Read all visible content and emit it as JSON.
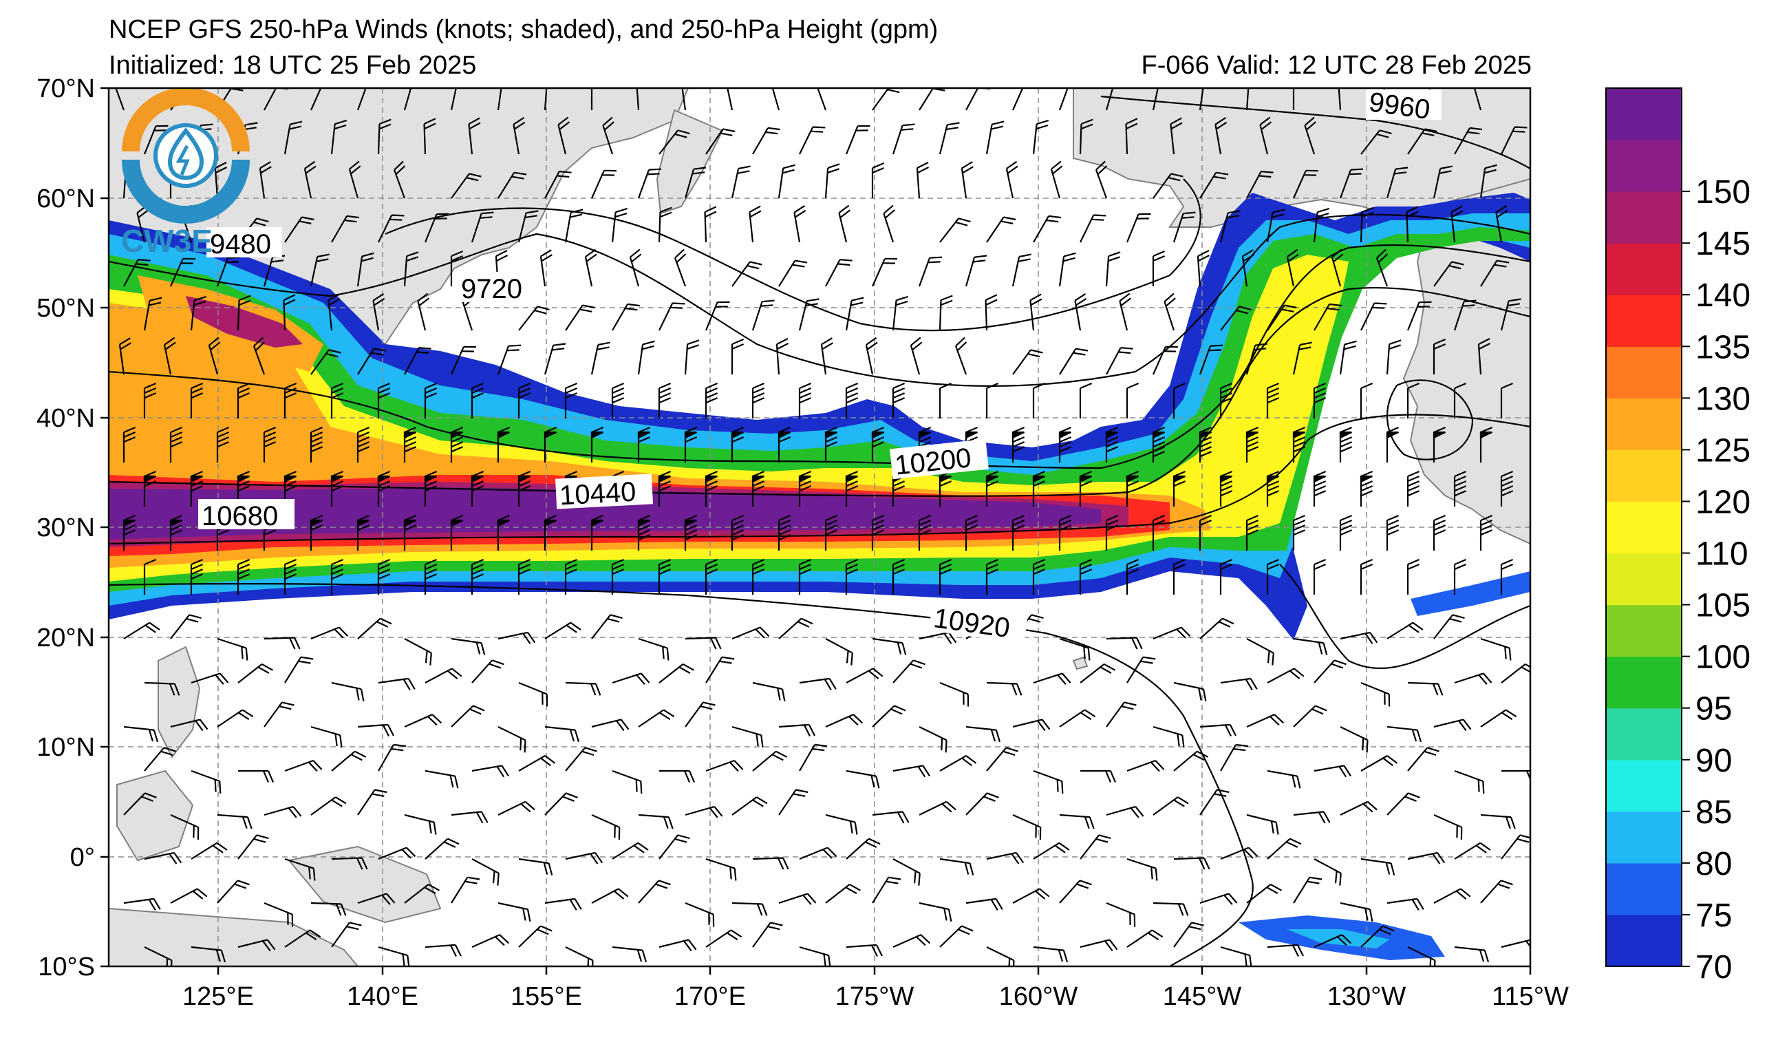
{
  "title": {
    "line1": "NCEP GFS 250-hPa Winds (knots; shaded), and 250-hPa Height (gpm)",
    "line2_left": "Initialized: 18 UTC 25 Feb 2025",
    "line2_right": "F-066  Valid: 12 UTC 28 Feb 2025"
  },
  "logo": {
    "text": "CW3E"
  },
  "lat_labels": [
    "70°N",
    "60°N",
    "50°N",
    "40°N",
    "30°N",
    "20°N",
    "10°N",
    "0°",
    "10°S"
  ],
  "lon_labels": [
    "125°E",
    "140°E",
    "155°E",
    "170°E",
    "175°W",
    "160°W",
    "145°W",
    "130°W",
    "115°W"
  ],
  "colorbar": {
    "ticks": [
      "70",
      "75",
      "80",
      "85",
      "90",
      "95",
      "100",
      "105",
      "110",
      "120",
      "125",
      "130",
      "135",
      "140",
      "145",
      "150"
    ],
    "colors": [
      "#1a2ecb",
      "#1f5ff0",
      "#22b8f5",
      "#22eee6",
      "#2ad6a2",
      "#24c02a",
      "#80d024",
      "#e0ee1e",
      "#fff620",
      "#ffd020",
      "#ffa820",
      "#ff7a20",
      "#ff2a20",
      "#d81e3c",
      "#a81e6a",
      "#8a1e86",
      "#6e1e94"
    ]
  },
  "contour_labels": [
    "9960",
    "9480",
    "9720",
    "10200",
    "10440",
    "10680",
    "10920"
  ],
  "colors": {
    "land": "#e1e1e1",
    "coast": "#808080",
    "grid": "#8c8c8c"
  }
}
